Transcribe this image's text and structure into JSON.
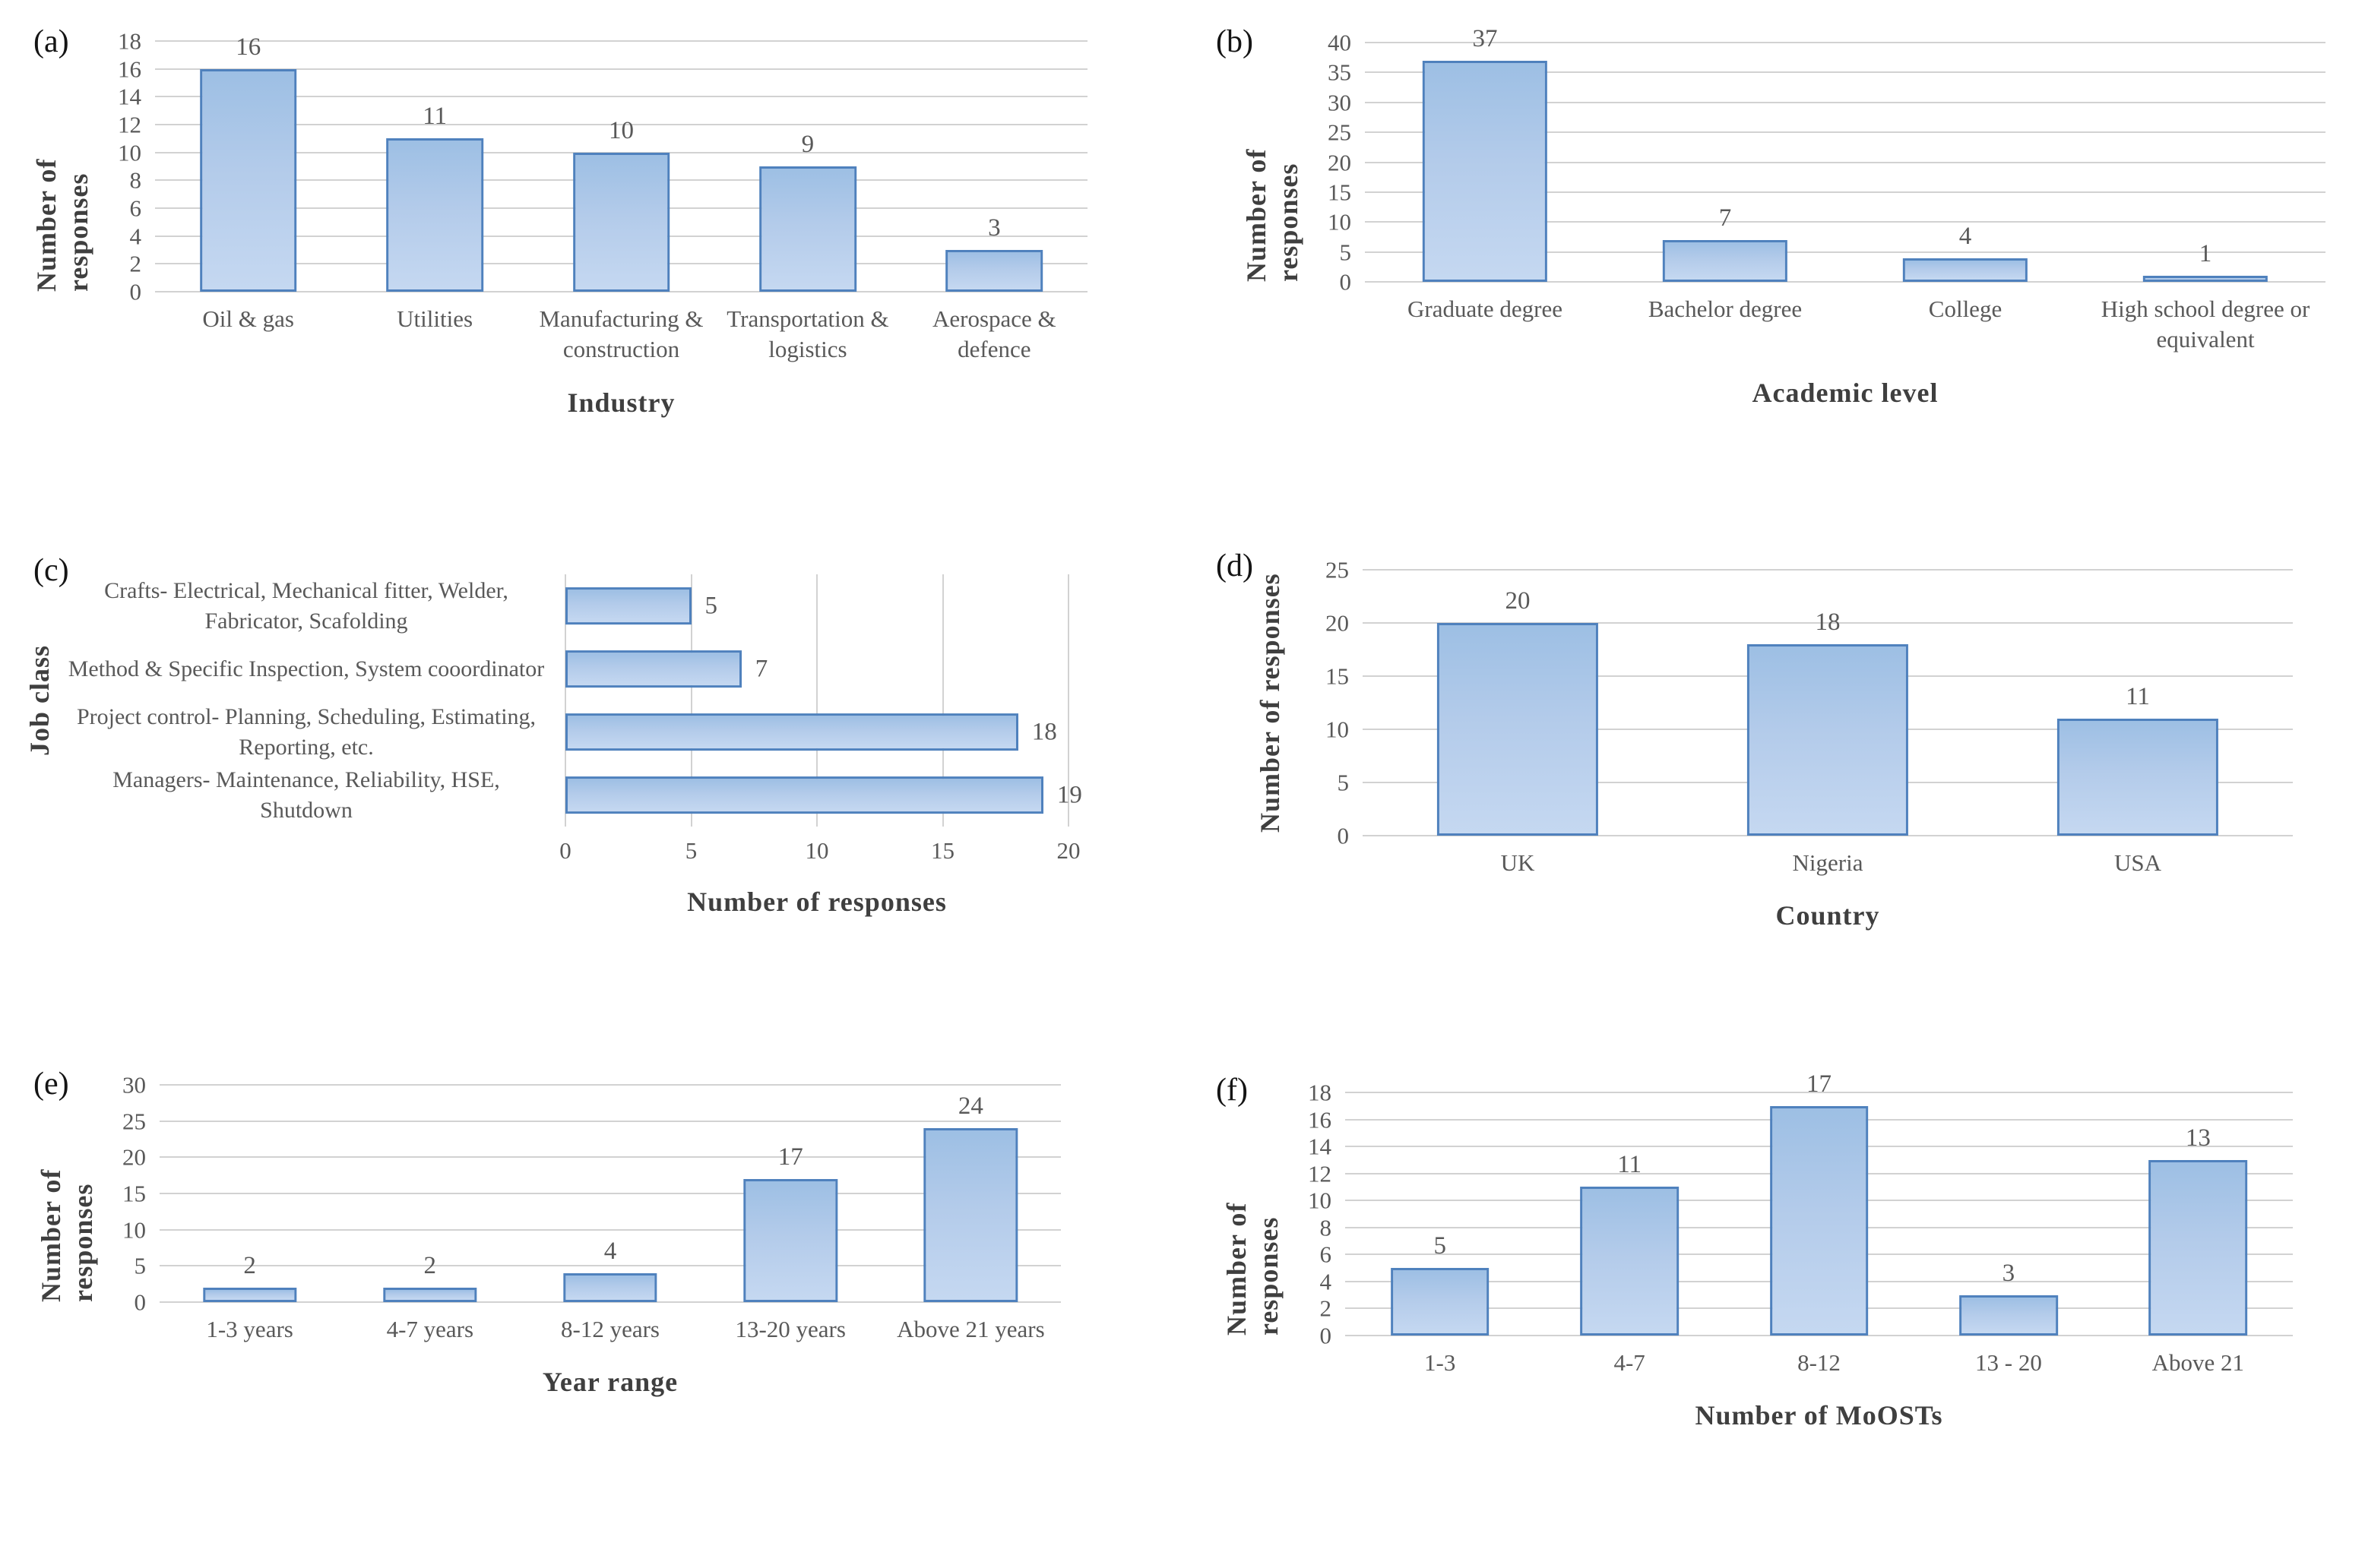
{
  "style": {
    "bar_fill_top": "#9dbfe4",
    "bar_fill_bottom": "#c5d8f1",
    "bar_border": "#4f81bd",
    "gridline": "#d2d2d2",
    "tick_text": "#595959",
    "axis_title_text": "#3f3f3f",
    "background": "#ffffff"
  },
  "chart_data": [
    {
      "panel": "(a)",
      "type": "bar",
      "orientation": "vertical",
      "title": "",
      "xlabel": "Industry",
      "ylabel": "Number of responses",
      "categories": [
        "Oil & gas",
        "Utilities",
        "Manufacturing & construction",
        "Transportation & logistics",
        "Aerospace & defence"
      ],
      "values": [
        16,
        11,
        10,
        9,
        3
      ],
      "ylim": [
        0,
        18
      ],
      "yticks": [
        0,
        2,
        4,
        6,
        8,
        10,
        12,
        14,
        16,
        18
      ],
      "grid": true,
      "legend": false
    },
    {
      "panel": "(b)",
      "type": "bar",
      "orientation": "vertical",
      "title": "",
      "xlabel": "Academic level",
      "ylabel": "Number of responses",
      "categories": [
        "Graduate degree",
        "Bachelor degree",
        "College",
        "High school degree or equivalent"
      ],
      "values": [
        37,
        7,
        4,
        1
      ],
      "ylim": [
        0,
        40
      ],
      "yticks": [
        0,
        5,
        10,
        15,
        20,
        25,
        30,
        35,
        40
      ],
      "grid": true,
      "legend": false
    },
    {
      "panel": "(c)",
      "type": "bar",
      "orientation": "horizontal",
      "title": "",
      "xlabel": "Number of responses",
      "ylabel": "Job class",
      "categories": [
        "Crafts- Electrical, Mechanical fitter, Welder, Fabricator, Scafolding",
        "Method & Specific Inspection, System cooordinator",
        "Project control- Planning, Scheduling, Estimating, Reporting, etc.",
        "Managers- Maintenance, Reliability, HSE, Shutdown"
      ],
      "values": [
        5,
        7,
        18,
        19
      ],
      "xlim": [
        0,
        20
      ],
      "xticks": [
        0,
        5,
        10,
        15,
        20
      ],
      "grid": true,
      "legend": false
    },
    {
      "panel": "(d)",
      "type": "bar",
      "orientation": "vertical",
      "title": "",
      "xlabel": "Country",
      "ylabel": "Number of responses",
      "categories": [
        "UK",
        "Nigeria",
        "USA"
      ],
      "values": [
        20,
        18,
        11
      ],
      "ylim": [
        0,
        25
      ],
      "yticks": [
        0,
        5,
        10,
        15,
        20,
        25
      ],
      "grid": true,
      "legend": false
    },
    {
      "panel": "(e)",
      "type": "bar",
      "orientation": "vertical",
      "title": "",
      "xlabel": "Year range",
      "ylabel": "Number of responses",
      "categories": [
        "1-3 years",
        "4-7 years",
        "8-12 years",
        "13-20 years",
        "Above 21 years"
      ],
      "values": [
        2,
        2,
        4,
        17,
        24
      ],
      "ylim": [
        0,
        30
      ],
      "yticks": [
        0,
        5,
        10,
        15,
        20,
        25,
        30
      ],
      "grid": true,
      "legend": false
    },
    {
      "panel": "(f)",
      "type": "bar",
      "orientation": "vertical",
      "title": "",
      "xlabel": "Number of MoOSTs",
      "ylabel": "Number of responses",
      "categories": [
        "1-3",
        "4-7",
        "8-12",
        "13 - 20",
        "Above 21"
      ],
      "values": [
        5,
        11,
        17,
        3,
        13
      ],
      "ylim": [
        0,
        18
      ],
      "yticks": [
        0,
        2,
        4,
        6,
        8,
        10,
        12,
        14,
        16,
        18
      ],
      "grid": true,
      "legend": false
    }
  ]
}
